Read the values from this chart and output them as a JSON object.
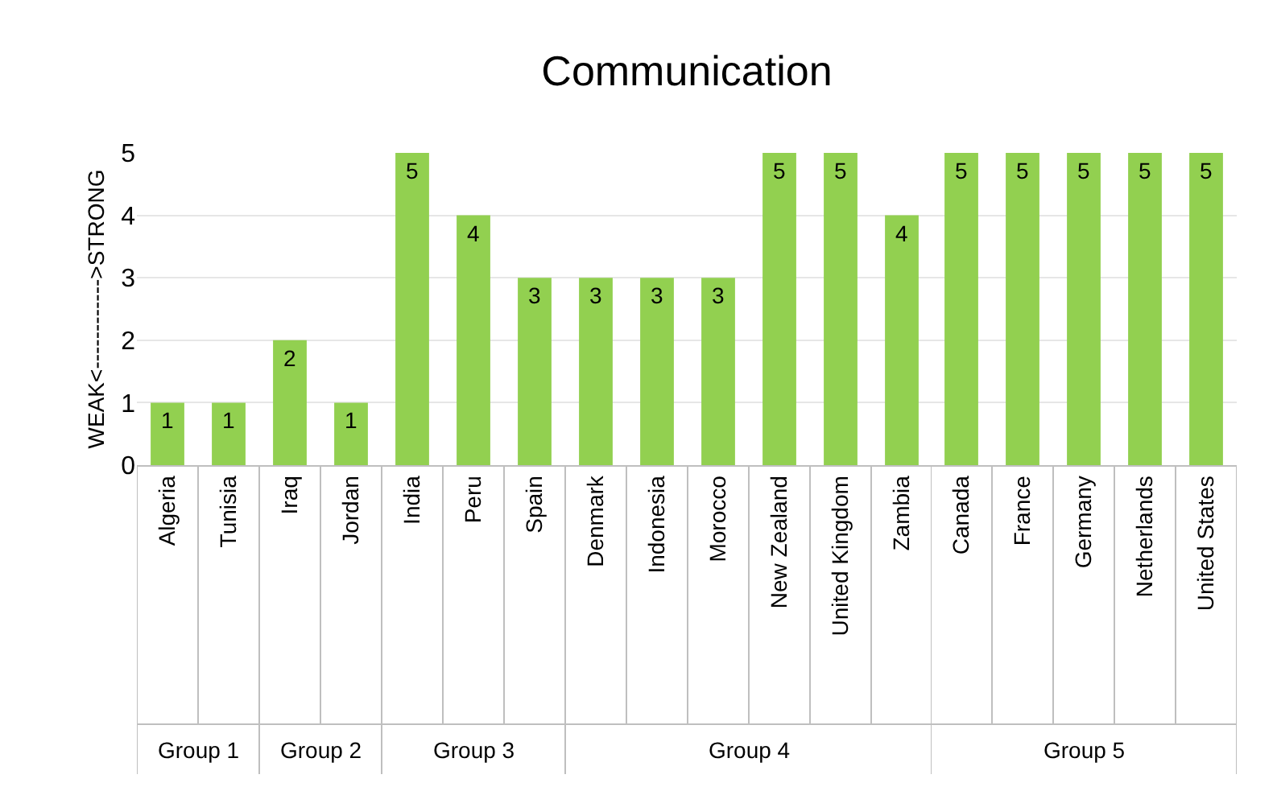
{
  "chart_data": [
    {
      "type": "bar",
      "ylabel": "WEAK<------------>STRONG",
      "xlabel": "Group 1",
      "categories": [
        "Algeria",
        "Tunisia"
      ],
      "values": [
        1,
        1
      ],
      "color": "#92d050",
      "ylim": [
        0,
        5
      ],
      "yticks": [
        0,
        1,
        2,
        3,
        4,
        5
      ],
      "grid": "y",
      "data_labels": true
    },
    {
      "type": "bar",
      "xlabel": "Group 2",
      "categories": [
        "Iraq",
        "Jordan"
      ],
      "values": [
        2,
        1
      ],
      "color": "#92d050",
      "ylim": [
        0,
        5
      ],
      "grid": "y",
      "data_labels": true,
      "tick_labels": "x"
    },
    {
      "type": "bar",
      "xlabel": "Group 3",
      "categories": [
        "India",
        "Peru",
        "Spain"
      ],
      "values": [
        5,
        4,
        3
      ],
      "color": "#92d050",
      "ylim": [
        0,
        5
      ],
      "grid": "y",
      "data_labels": true,
      "tick_labels": "x"
    },
    {
      "type": "bar",
      "title": "Communication",
      "xlabel": "Group 4",
      "categories": [
        "Denmark",
        "Indonesia",
        "Morocco",
        "New Zealand",
        "United Kingdom",
        "Zambia"
      ],
      "values": [
        3,
        3,
        3,
        5,
        5,
        4
      ],
      "color": "#92d050",
      "ylim": [
        0,
        5
      ],
      "grid": "y",
      "data_labels": true,
      "tick_labels": "x"
    },
    {
      "type": "bar",
      "xlabel": "Group 5",
      "categories": [
        "Canada",
        "France",
        "Germany",
        "Netherlands",
        "United States"
      ],
      "values": [
        5,
        5,
        5,
        5,
        5
      ],
      "color": "#92d050",
      "ylim": [
        0,
        5
      ],
      "grid": "y",
      "data_labels": true,
      "tick_labels": "x"
    }
  ]
}
